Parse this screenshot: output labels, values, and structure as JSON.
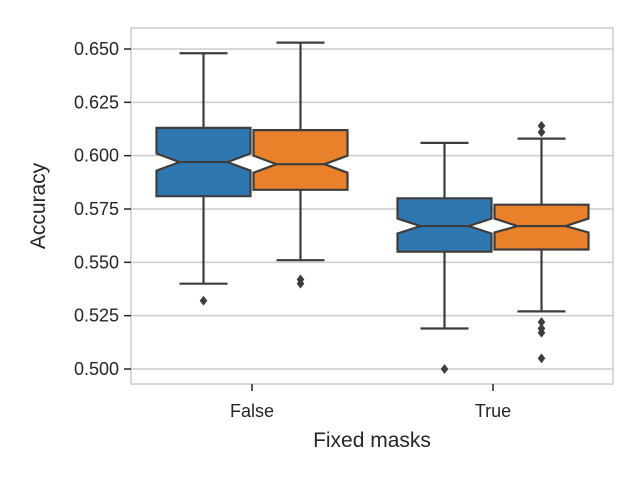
{
  "chart_data": {
    "type": "box",
    "xlabel": "Fixed masks",
    "ylabel": "Accuracy",
    "categories": [
      "False",
      "True"
    ],
    "ylim": [
      0.492,
      0.662
    ],
    "yticks": [
      0.5,
      0.525,
      0.55,
      0.575,
      0.6,
      0.625,
      0.65
    ],
    "ytick_labels": [
      "0.500",
      "0.525",
      "0.550",
      "0.575",
      "0.600",
      "0.625",
      "0.650"
    ],
    "grid": "horizontal",
    "notched": true,
    "series": [
      {
        "color": "#2f77b0",
        "boxes": [
          {
            "whisker_low": 0.54,
            "q1": 0.581,
            "median": 0.597,
            "q3": 0.613,
            "whisker_high": 0.648,
            "notch_low": 0.593,
            "notch_high": 0.601,
            "outliers": [
              0.532
            ]
          },
          {
            "whisker_low": 0.519,
            "q1": 0.555,
            "median": 0.567,
            "q3": 0.58,
            "whisker_high": 0.606,
            "notch_low": 0.5635,
            "notch_high": 0.5705,
            "outliers": [
              0.5
            ]
          }
        ]
      },
      {
        "color": "#e8812a",
        "boxes": [
          {
            "whisker_low": 0.551,
            "q1": 0.584,
            "median": 0.596,
            "q3": 0.612,
            "whisker_high": 0.653,
            "notch_low": 0.592,
            "notch_high": 0.6,
            "outliers": [
              0.542,
              0.54
            ]
          },
          {
            "whisker_low": 0.527,
            "q1": 0.556,
            "median": 0.567,
            "q3": 0.577,
            "whisker_high": 0.608,
            "notch_low": 0.564,
            "notch_high": 0.5705,
            "outliers": [
              0.522,
              0.519,
              0.517,
              0.505,
              0.611,
              0.614
            ]
          }
        ]
      }
    ]
  }
}
